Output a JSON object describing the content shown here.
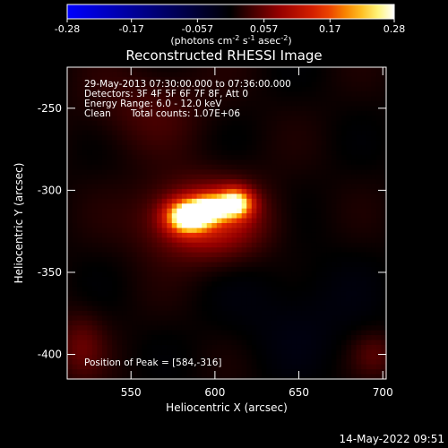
{
  "colorbar": {
    "ticks": [
      -0.28,
      -0.17,
      -0.057,
      0.057,
      0.17,
      0.28
    ],
    "tick_labels": [
      "-0.28",
      "-0.17",
      "-0.057",
      "0.057",
      "0.17",
      "0.28"
    ],
    "unit_prefix": "(photons cm",
    "unit_sup1": "-2",
    "unit_mid1": " s",
    "unit_sup2": "-1",
    "unit_mid2": " asec",
    "unit_sup3": "-2",
    "unit_suffix": ")",
    "range": [
      -0.28,
      0.28
    ],
    "colormap": "blue-black-red-yellow-white"
  },
  "image_title": "Reconstructed RHESSI Image",
  "info": {
    "time_range": "29-May-2013 07:30:00.000 to 07:36:00.000",
    "detectors": "Detectors: 3F 4F 5F 6F 7F 8F, Att 0",
    "energy_range": "Energy Range: 6.0 - 12.0 keV",
    "method": "Clean",
    "total_counts": "Total counts: 1.07E+06",
    "peak_position": "Position of Peak = [584,-316]"
  },
  "timestamp": "14-May-2022 09:51",
  "chart_data": {
    "type": "heatmap",
    "title": "Reconstructed RHESSI Image",
    "xlabel": "Heliocentric X (arcsec)",
    "ylabel": "Heliocentric Y (arcsec)",
    "xlim": [
      512,
      702
    ],
    "ylim": [
      -415,
      -225
    ],
    "xticks": [
      550,
      600,
      650,
      700
    ],
    "xtick_labels": [
      "550",
      "600",
      "650",
      "700"
    ],
    "yticks": [
      -250,
      -300,
      -350,
      -400
    ],
    "ytick_labels": [
      "-250",
      "-300",
      "-350",
      "-400"
    ],
    "peak": [
      584,
      -316
    ],
    "sources": [
      {
        "x": 584,
        "y": -316,
        "amplitude": 0.28,
        "sigma_x": 8.5,
        "sigma_y": 6.5
      },
      {
        "x": 597,
        "y": -311,
        "amplitude": 0.2,
        "sigma_x": 7,
        "sigma_y": 5.5
      },
      {
        "x": 612,
        "y": -308,
        "amplitude": 0.245,
        "sigma_x": 7,
        "sigma_y": 6
      },
      {
        "x": 594,
        "y": -318,
        "amplitude": 0.12,
        "sigma_x": 24,
        "sigma_y": 16
      },
      {
        "x": 520,
        "y": -395,
        "amplitude": 0.045,
        "sigma_x": 10,
        "sigma_y": 14
      },
      {
        "x": 695,
        "y": -400,
        "amplitude": 0.035,
        "sigma_x": 9,
        "sigma_y": 9
      },
      {
        "x": 560,
        "y": -250,
        "amplitude": 0.03,
        "sigma_x": 25,
        "sigma_y": 18
      },
      {
        "x": 650,
        "y": -375,
        "amplitude": -0.02,
        "sigma_x": 30,
        "sigma_y": 25
      }
    ]
  }
}
